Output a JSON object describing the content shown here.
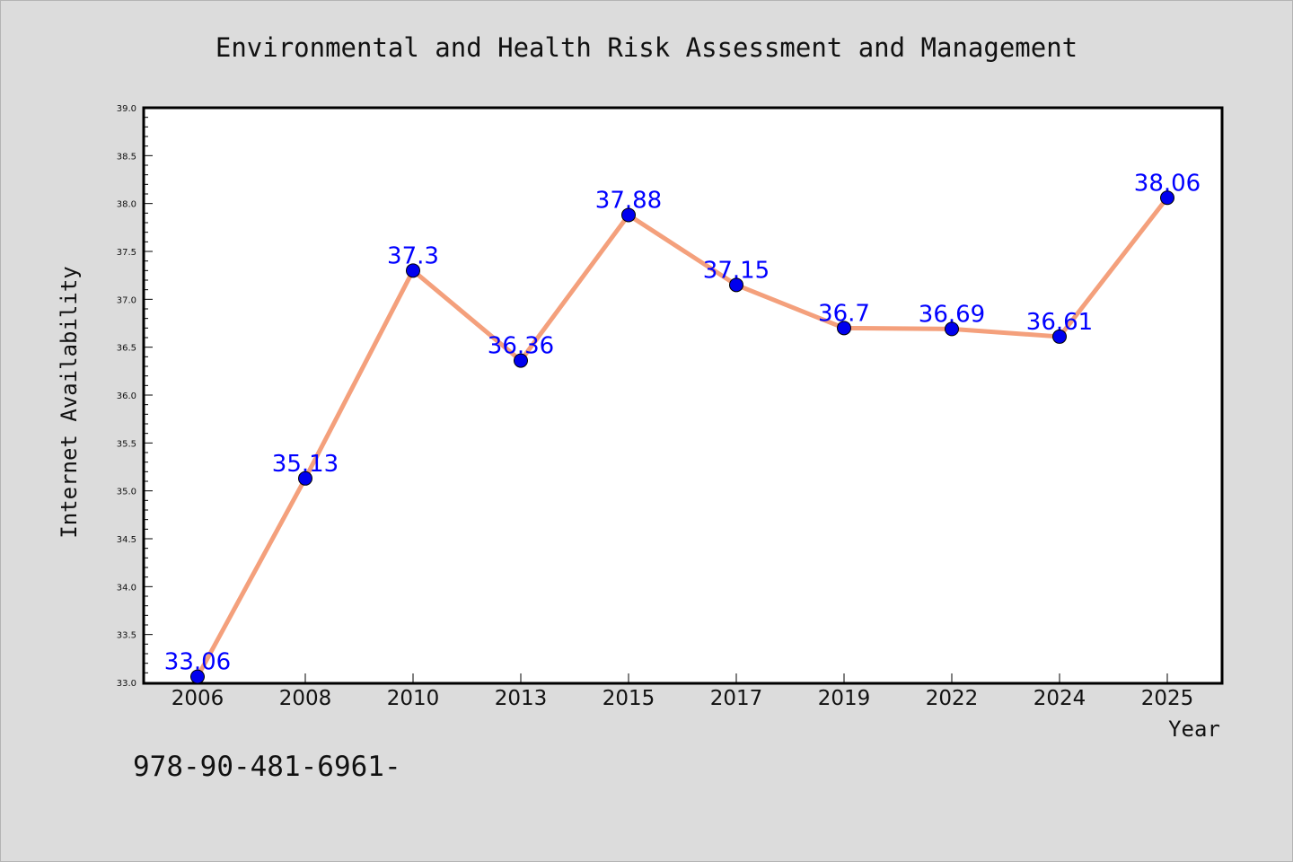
{
  "colors": {
    "background": "#dcdcdc",
    "plot_background": "#ffffff",
    "line": "#f4a07c",
    "marker": "#0000ee",
    "data_label": "#0000ff"
  },
  "footnote": "978-90-481-6961-",
  "chart_data": {
    "type": "line",
    "title": "Environmental and Health Risk Assessment and Management",
    "xlabel": "Year",
    "ylabel": "Internet Availability",
    "categories": [
      "2006",
      "2008",
      "2010",
      "2013",
      "2015",
      "2017",
      "2019",
      "2022",
      "2024",
      "2025"
    ],
    "series": [
      {
        "values": [
          33.06,
          35.13,
          37.3,
          36.36,
          37.88,
          37.15,
          36.7,
          36.69,
          36.61,
          38.06
        ],
        "labels": [
          "33.06",
          "35.13",
          "37.3",
          "36.36",
          "37.88",
          "37.15",
          "36.7",
          "36.69",
          "36.61",
          "38.06"
        ]
      }
    ],
    "ylim": [
      33.0,
      39.0
    ],
    "yticks": [
      "33.0",
      "33.5",
      "34.0",
      "34.5",
      "35.0",
      "35.5",
      "36.0",
      "36.5",
      "37.0",
      "37.5",
      "38.0",
      "38.5",
      "39.0"
    ],
    "grid": false,
    "legend": "none"
  }
}
